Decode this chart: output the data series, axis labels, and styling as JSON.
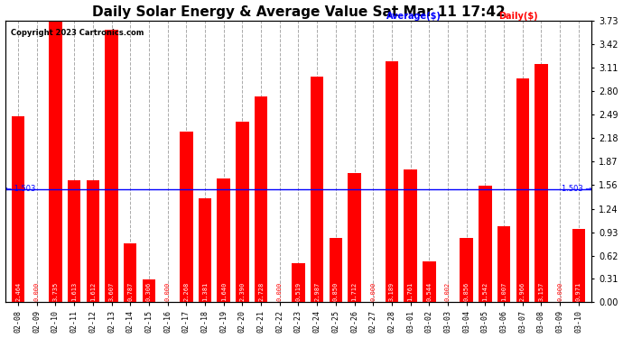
{
  "title": "Daily Solar Energy & Average Value Sat Mar 11 17:42",
  "copyright": "Copyright 2023 Cartronics.com",
  "categories": [
    "02-08",
    "02-09",
    "02-10",
    "02-11",
    "02-12",
    "02-13",
    "02-14",
    "02-15",
    "02-16",
    "02-17",
    "02-18",
    "02-19",
    "02-20",
    "02-21",
    "02-22",
    "02-23",
    "02-24",
    "02-25",
    "02-26",
    "02-27",
    "02-28",
    "03-01",
    "03-02",
    "03-03",
    "03-04",
    "03-05",
    "03-06",
    "03-07",
    "03-08",
    "03-09",
    "03-10"
  ],
  "values": [
    2.464,
    0.0,
    3.735,
    1.613,
    1.612,
    3.607,
    0.787,
    0.306,
    0.0,
    2.268,
    1.381,
    1.64,
    2.39,
    2.728,
    0.0,
    0.519,
    2.987,
    0.85,
    1.712,
    0.0,
    3.189,
    1.761,
    0.544,
    0.002,
    0.856,
    1.542,
    1.007,
    2.966,
    3.157,
    0.0,
    0.971
  ],
  "average_value": 1.503,
  "bar_color": "#FF0000",
  "average_line_color": "#0000FF",
  "ylabel_right_ticks": [
    0.0,
    0.31,
    0.62,
    0.93,
    1.24,
    1.56,
    1.87,
    2.18,
    2.49,
    2.8,
    3.11,
    3.42,
    3.73
  ],
  "background_color": "#FFFFFF",
  "grid_color": "#AAAAAA",
  "title_fontsize": 11,
  "bar_value_fontsize": 5.0,
  "legend_avg_color": "#0000FF",
  "legend_daily_color": "#FF0000"
}
